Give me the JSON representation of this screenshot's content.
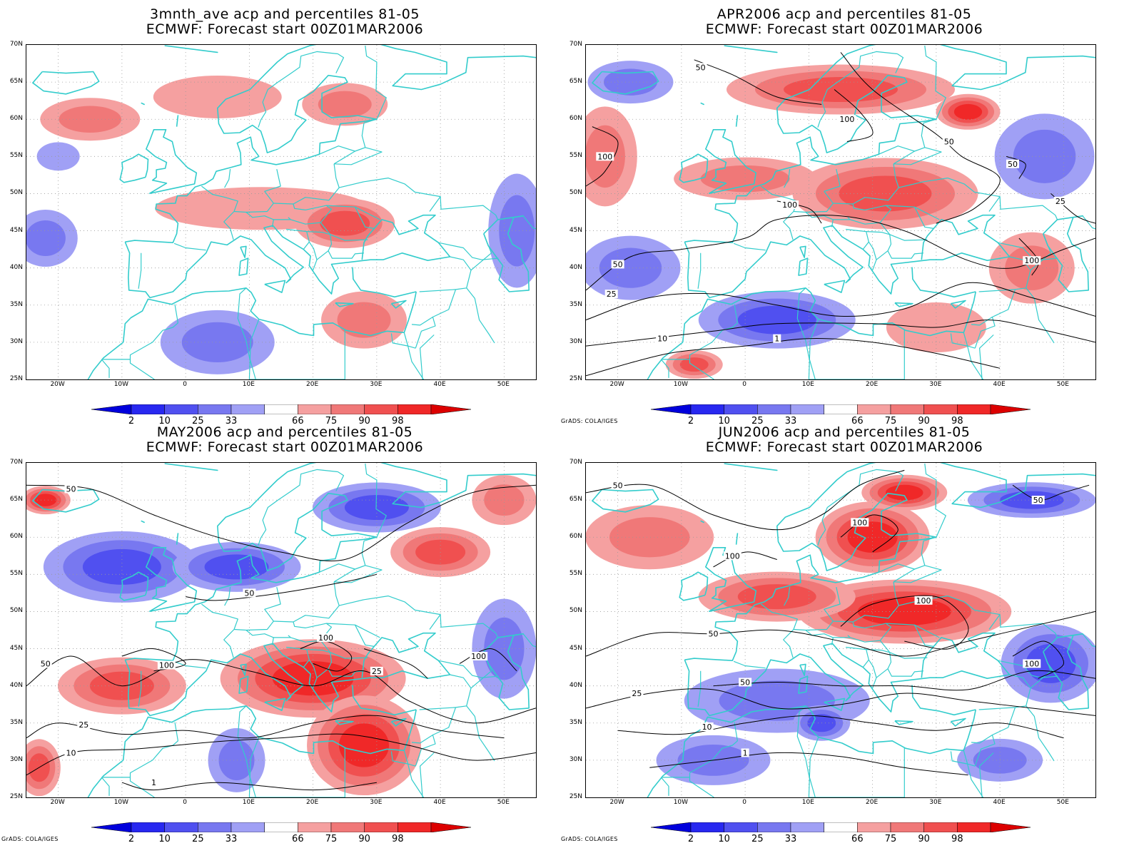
{
  "panels": [
    {
      "id": "3mnth",
      "title1": "3mnth_ave acp and percentiles 81-05",
      "title2": "ECMWF: Forecast start 00Z01MAR2006",
      "credit": "",
      "contours": [],
      "blobs": [
        {
          "lon": -15,
          "lat": 60,
          "cat": "75",
          "rx": 70,
          "ry": 30
        },
        {
          "lon": 5,
          "lat": 63,
          "cat": "66",
          "rx": 90,
          "ry": 30
        },
        {
          "lon": 25,
          "lat": 62,
          "cat": "75",
          "rx": 60,
          "ry": 30
        },
        {
          "lon": 12,
          "lat": 48,
          "cat": "66",
          "rx": 150,
          "ry": 30
        },
        {
          "lon": 25,
          "lat": 46,
          "cat": "90",
          "rx": 70,
          "ry": 35
        },
        {
          "lon": -22,
          "lat": 44,
          "cat": "25",
          "rx": 45,
          "ry": 40
        },
        {
          "lon": 52,
          "lat": 45,
          "cat": "25",
          "rx": 40,
          "ry": 80
        },
        {
          "lon": 5,
          "lat": 30,
          "cat": "25",
          "rx": 80,
          "ry": 45
        },
        {
          "lon": 28,
          "lat": 33,
          "cat": "75",
          "rx": 60,
          "ry": 40
        },
        {
          "lon": -20,
          "lat": 55,
          "cat": "33",
          "rx": 30,
          "ry": 20
        }
      ]
    },
    {
      "id": "apr",
      "title1": "APR2006 acp and percentiles 81-05",
      "title2": "ECMWF: Forecast start 00Z01MAR2006",
      "credit": "GrADS: COLA/IGES",
      "contours": [
        "50",
        "100",
        "25",
        "10",
        "1"
      ],
      "blobs": [
        {
          "lon": -22,
          "lat": 55,
          "cat": "75",
          "rx": 45,
          "ry": 70
        },
        {
          "lon": -18,
          "lat": 65,
          "cat": "25",
          "rx": 60,
          "ry": 30
        },
        {
          "lon": 15,
          "lat": 64,
          "cat": "90",
          "rx": 160,
          "ry": 35
        },
        {
          "lon": 35,
          "lat": 61,
          "cat": "98",
          "rx": 45,
          "ry": 25
        },
        {
          "lon": 22,
          "lat": 50,
          "cat": "90",
          "rx": 130,
          "ry": 50
        },
        {
          "lon": 0,
          "lat": 52,
          "cat": "75",
          "rx": 100,
          "ry": 30
        },
        {
          "lon": -18,
          "lat": 40,
          "cat": "25",
          "rx": 70,
          "ry": 45
        },
        {
          "lon": 5,
          "lat": 33,
          "cat": "10",
          "rx": 110,
          "ry": 40
        },
        {
          "lon": 47,
          "lat": 55,
          "cat": "25",
          "rx": 70,
          "ry": 60
        },
        {
          "lon": 45,
          "lat": 40,
          "cat": "75",
          "rx": 60,
          "ry": 50
        },
        {
          "lon": 30,
          "lat": 32,
          "cat": "66",
          "rx": 70,
          "ry": 35
        },
        {
          "lon": -8,
          "lat": 27,
          "cat": "90",
          "rx": 40,
          "ry": 20
        }
      ]
    },
    {
      "id": "may",
      "title1": "MAY2006 acp and percentiles 81-05",
      "title2": "ECMWF: Forecast start 00Z01MAR2006",
      "credit": "GrADS: COLA/IGES",
      "contours": [
        "50",
        "100",
        "25",
        "10",
        "1"
      ],
      "blobs": [
        {
          "lon": -22,
          "lat": 65,
          "cat": "98",
          "rx": 35,
          "ry": 20
        },
        {
          "lon": -10,
          "lat": 56,
          "cat": "10",
          "rx": 110,
          "ry": 50
        },
        {
          "lon": 8,
          "lat": 56,
          "cat": "10",
          "rx": 90,
          "ry": 35
        },
        {
          "lon": 30,
          "lat": 64,
          "cat": "10",
          "rx": 90,
          "ry": 35
        },
        {
          "lon": 40,
          "lat": 58,
          "cat": "90",
          "rx": 70,
          "ry": 35
        },
        {
          "lon": 20,
          "lat": 41,
          "cat": "98",
          "rx": 130,
          "ry": 55
        },
        {
          "lon": 28,
          "lat": 32,
          "cat": "98",
          "rx": 80,
          "ry": 70
        },
        {
          "lon": -10,
          "lat": 40,
          "cat": "90",
          "rx": 90,
          "ry": 40
        },
        {
          "lon": -23,
          "lat": 29,
          "cat": "90",
          "rx": 30,
          "ry": 40
        },
        {
          "lon": 8,
          "lat": 30,
          "cat": "25",
          "rx": 40,
          "ry": 45
        },
        {
          "lon": 50,
          "lat": 45,
          "cat": "25",
          "rx": 45,
          "ry": 70
        },
        {
          "lon": 50,
          "lat": 65,
          "cat": "75",
          "rx": 45,
          "ry": 35
        }
      ]
    },
    {
      "id": "jun",
      "title1": "JUN2006 acp and percentiles 81-05",
      "title2": "ECMWF: Forecast start 00Z01MAR2006",
      "credit": "GrADS: COLA/IGES",
      "contours": [
        "50",
        "100",
        "25",
        "10",
        "1"
      ],
      "blobs": [
        {
          "lon": -15,
          "lat": 60,
          "cat": "75",
          "rx": 90,
          "ry": 45
        },
        {
          "lon": 20,
          "lat": 60,
          "cat": "98",
          "rx": 80,
          "ry": 50
        },
        {
          "lon": 25,
          "lat": 50,
          "cat": "98",
          "rx": 150,
          "ry": 45
        },
        {
          "lon": 5,
          "lat": 52,
          "cat": "90",
          "rx": 110,
          "ry": 35
        },
        {
          "lon": 25,
          "lat": 66,
          "cat": "98",
          "rx": 60,
          "ry": 25
        },
        {
          "lon": 45,
          "lat": 65,
          "cat": "10",
          "rx": 90,
          "ry": 25
        },
        {
          "lon": 48,
          "lat": 43,
          "cat": "10",
          "rx": 70,
          "ry": 55
        },
        {
          "lon": 5,
          "lat": 38,
          "cat": "25",
          "rx": 130,
          "ry": 45
        },
        {
          "lon": -5,
          "lat": 30,
          "cat": "25",
          "rx": 80,
          "ry": 35
        },
        {
          "lon": 40,
          "lat": 30,
          "cat": "25",
          "rx": 60,
          "ry": 30
        },
        {
          "lon": 12,
          "lat": 35,
          "cat": "10",
          "rx": 40,
          "ry": 25
        }
      ]
    }
  ],
  "axes": {
    "lat_labels": [
      "70N",
      "65N",
      "60N",
      "55N",
      "50N",
      "45N",
      "40N",
      "35N",
      "30N",
      "25N"
    ],
    "lon_labels": [
      "20W",
      "10W",
      "0",
      "10E",
      "20E",
      "30E",
      "40E",
      "50E"
    ]
  },
  "colorbar": {
    "ticks": [
      "2",
      "10",
      "25",
      "33",
      "66",
      "75",
      "90",
      "98"
    ],
    "colors": {
      "lt2": "#0000dc",
      "2": "#2828f0",
      "10": "#5050f0",
      "25": "#7878f0",
      "33": "#a0a0f5",
      "mid": "#ffffff",
      "66": "#f5a0a0",
      "75": "#f07878",
      "90": "#f05050",
      "98": "#f02828",
      "gt98": "#dc0000"
    }
  },
  "coast_color": "#33cccc"
}
